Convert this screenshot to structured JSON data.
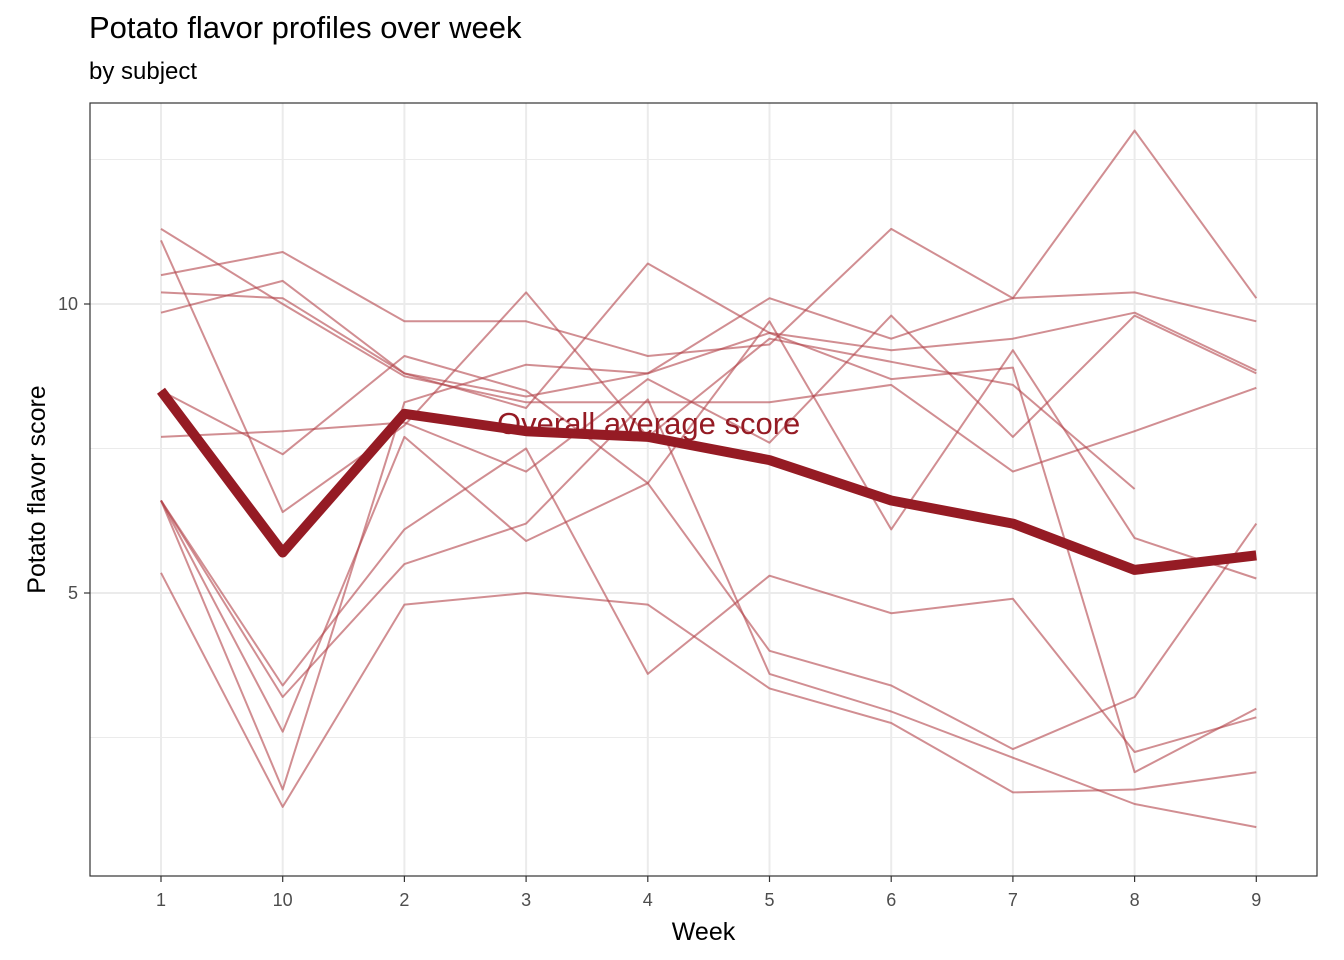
{
  "chart_data": {
    "type": "line",
    "title": "Potato flavor profiles over week",
    "subtitle": "by subject",
    "xlabel": "Week",
    "ylabel": "Potato flavor score",
    "categories": [
      "1",
      "10",
      "2",
      "3",
      "4",
      "5",
      "6",
      "7",
      "8",
      "9"
    ],
    "y_ticks": [
      5,
      10
    ],
    "ylim": [
      0.7,
      13.4
    ],
    "grid": true,
    "legend": "none",
    "colors": {
      "subject_line": "#b2424a",
      "average_line": "#951b24",
      "annotation": "#951b24",
      "grid": "#ebebeb",
      "border": "#333333"
    },
    "series": [
      {
        "values": [
          10.5,
          10.9,
          9.7,
          9.7,
          9.1,
          9.3,
          11.3,
          10.1,
          13.0,
          10.1
        ]
      },
      {
        "values": [
          10.2,
          10.1,
          8.8,
          8.4,
          8.8,
          10.1,
          9.4,
          10.1,
          10.2,
          9.7
        ]
      },
      {
        "values": [
          9.85,
          10.4,
          8.8,
          8.2,
          10.7,
          9.5,
          9.2,
          9.4,
          9.85,
          8.85
        ]
      },
      {
        "values": [
          11.3,
          10.0,
          8.75,
          8.3,
          8.3,
          8.3,
          8.6,
          7.1,
          7.8,
          8.55
        ]
      },
      {
        "values": [
          11.1,
          6.4,
          7.9,
          10.2,
          7.7,
          9.4,
          9.0,
          8.6,
          6.8,
          null
        ]
      },
      {
        "values": [
          8.5,
          7.4,
          9.1,
          8.5,
          6.9,
          9.7,
          6.1,
          9.2,
          5.95,
          5.25
        ]
      },
      {
        "values": [
          7.7,
          7.8,
          7.95,
          7.1,
          8.7,
          7.6,
          9.8,
          7.7,
          9.8,
          8.8
        ]
      },
      {
        "values": [
          6.6,
          2.6,
          7.7,
          5.9,
          6.9,
          4.0,
          3.4,
          2.3,
          3.2,
          6.2
        ]
      },
      {
        "values": [
          6.6,
          3.4,
          6.1,
          7.5,
          3.6,
          5.3,
          4.65,
          4.9,
          2.25,
          2.85
        ]
      },
      {
        "values": [
          6.6,
          1.6,
          8.3,
          8.95,
          8.8,
          9.5,
          8.7,
          8.9,
          1.9,
          3.0
        ]
      },
      {
        "values": [
          5.35,
          1.3,
          4.8,
          5.0,
          4.8,
          3.35,
          2.75,
          1.55,
          1.6,
          1.9
        ]
      },
      {
        "values": [
          6.6,
          3.2,
          5.5,
          6.2,
          8.35,
          3.6,
          2.95,
          2.15,
          1.35,
          0.95
        ]
      }
    ],
    "average": {
      "label": "Overall average score",
      "values": [
        8.5,
        5.7,
        8.1,
        7.8,
        7.7,
        7.3,
        6.6,
        6.2,
        5.4,
        5.65
      ]
    }
  }
}
